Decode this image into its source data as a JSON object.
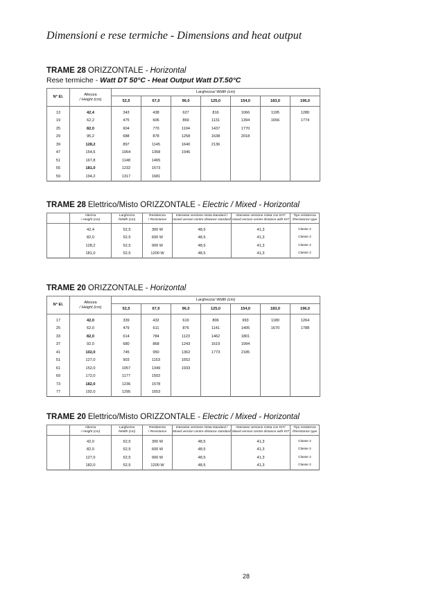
{
  "title": "Dimensioni e rese termiche - Dimensions and heat output",
  "sections": [
    {
      "heading": {
        "bold": "TRAME 28",
        "regular": "ORIZZONTALE -",
        "italic": "Horizontal"
      },
      "subheading": {
        "regular": "Rese termiche -",
        "italic": "Watt DT 50°C - Heat Output Watt DT.50°C"
      },
      "table": {
        "number": "N° El.",
        "height": [
          "Altezza",
          "/ Height (cm)"
        ],
        "width": [
          "Larghezza",
          "/ Width (cm)"
        ],
        "widths": [
          "52,5",
          "67,0",
          "96,0",
          "125,0",
          "154,0",
          "183,0",
          "196,0"
        ],
        "rows": [
          [
            "13",
            "42,4",
            "343",
            "438",
            "627",
            "816",
            "1066",
            "1195",
            "1280"
          ],
          [
            "19",
            "62,2",
            "475",
            "606",
            "869",
            "1131",
            "1394",
            "1656",
            "1774"
          ],
          [
            "25",
            "82,0",
            "604",
            "770",
            "1104",
            "1437",
            "1770"
          ],
          [
            "29",
            "95,2",
            "688",
            "878",
            "1258",
            "1638",
            "2018"
          ],
          [
            "39",
            "128,2",
            "897",
            "1145",
            "1640",
            "2136"
          ],
          [
            "47",
            "154,6",
            "1064",
            "1358",
            "1946"
          ],
          [
            "51",
            "167,8",
            "1148",
            "1465"
          ],
          [
            "55",
            "181,0",
            "1232",
            "1573"
          ],
          [
            "59",
            "194,2",
            "1317",
            "1681"
          ]
        ],
        "highlighted_rows": [
          0,
          2,
          4,
          7
        ]
      }
    },
    {
      "heading": {
        "bold": "TRAME 28",
        "regular": "Elettrico/Misto ORIZZONTALE -",
        "italic": "Electric / Mixed - Horizontal"
      },
      "table": {
        "columns": [
          [
            "Altezza",
            "/ Height (cm)"
          ],
          [
            "Larghezza",
            "/Width (cm)"
          ],
          [
            "Resistenza",
            "/ Resistance"
          ],
          [
            "Interasse versione mista standard /",
            "mixed version centre distance standard"
          ],
          [
            "Interasse versione mista con KIT/",
            "mixed version centre distance with KIT"
          ],
          [
            "Tipo resistenza",
            "/Resistance type"
          ]
        ],
        "rows": [
          [
            "42,4",
            "52,5",
            "300 W",
            "48,5",
            "41,3",
            "Classe 2"
          ],
          [
            "82,0",
            "52,5",
            "600 W",
            "48,5",
            "41,3",
            "Classe 2"
          ],
          [
            "128,2",
            "52,5",
            "900 W",
            "48,5",
            "41,3",
            "Classe 2"
          ],
          [
            "181,0",
            "52,5",
            "1200 W",
            "48,5",
            "41,3",
            "Classe 2"
          ]
        ]
      }
    },
    {
      "heading": {
        "bold": "TRAME 20",
        "regular": "ORIZZONTALE -",
        "italic": "Horizontal"
      },
      "table": {
        "number": "N° El.",
        "height": [
          "Altezza",
          "/ Height (cm)"
        ],
        "width": [
          "Larghezza",
          "/ Width (cm)"
        ],
        "widths": [
          "52,5",
          "67,0",
          "96,0",
          "125,0",
          "154,0",
          "183,0",
          "196,0"
        ],
        "rows": [
          [
            "17",
            "42,0",
            "339",
            "432",
            "619",
            "806",
            "993",
            "1180",
            "1264"
          ],
          [
            "25",
            "62,0",
            "479",
            "611",
            "876",
            "1141",
            "1405",
            "1670",
            "1788"
          ],
          [
            "33",
            "82,0",
            "614",
            "784",
            "1123",
            "1462",
            "1801"
          ],
          [
            "37",
            "92,0",
            "680",
            "868",
            "1243",
            "1619",
            "1994"
          ],
          [
            "41",
            "102,0",
            "745",
            "950",
            "1362",
            "1773",
            "2185"
          ],
          [
            "51",
            "127,0",
            "903",
            "1153",
            "1652"
          ],
          [
            "61",
            "152,0",
            "1057",
            "1349",
            "1933"
          ],
          [
            "69",
            "172,0",
            "1177",
            "1502"
          ],
          [
            "73",
            "182,0",
            "1236",
            "1578"
          ],
          [
            "77",
            "192,0",
            "1295",
            "1653"
          ]
        ],
        "highlighted_rows": [
          0,
          2,
          4,
          8
        ]
      }
    },
    {
      "heading": {
        "bold": "TRAME 20",
        "regular": "Elettrico/Misto ORIZZONTALE -",
        "italic": "Electric / Mixed - Horizontal"
      },
      "table": {
        "columns": [
          [
            "Altezza",
            "/ Height (cm)"
          ],
          [
            "Larghezza",
            "/Width (cm)"
          ],
          [
            "Resistenza",
            "/ Resistance"
          ],
          [
            "Interasse versione mista standard /",
            "Mixed version centre distance standard"
          ],
          [
            "Interasse versione mista con KIT/",
            "Mixed version centre distance with KIT"
          ],
          [
            "Tipo resistenza",
            "/Resistance type"
          ]
        ],
        "rows": [
          [
            "42,0",
            "52,5",
            "300 W",
            "48,5",
            "41,3",
            "Classe 2"
          ],
          [
            "82,0",
            "52,5",
            "600 W",
            "48,5",
            "41,3",
            "Classe 2"
          ],
          [
            "127,0",
            "52,5",
            "900 W",
            "48,5",
            "41,3",
            "Classe 2"
          ],
          [
            "182,0",
            "52,5",
            "1200 W",
            "48,5",
            "41,3",
            "Classe 2"
          ]
        ]
      }
    }
  ],
  "page_number": "28"
}
